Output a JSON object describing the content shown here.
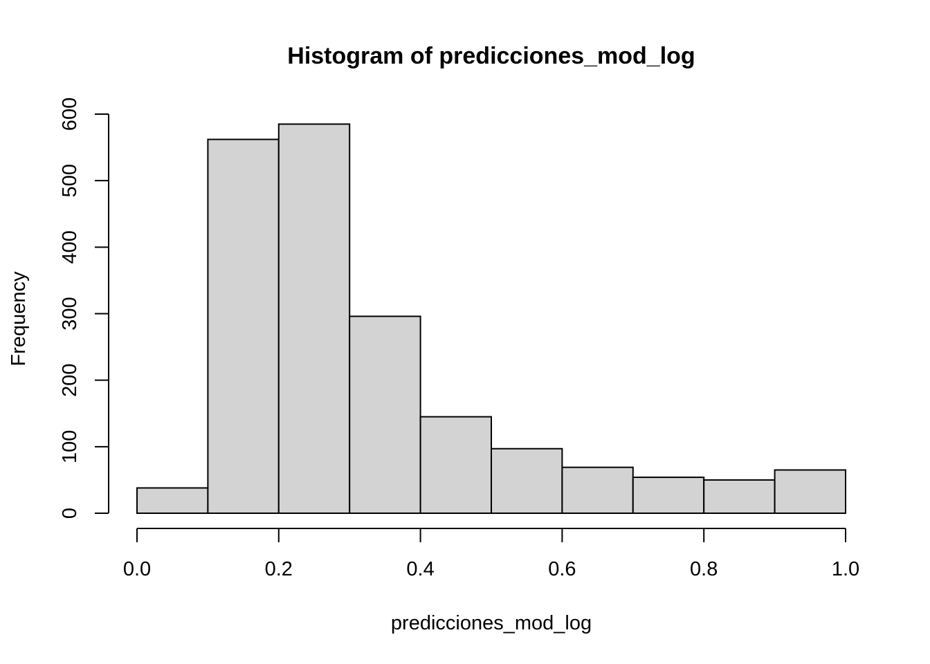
{
  "chart_data": {
    "type": "bar",
    "title": "Histogram of predicciones_mod_log",
    "xlabel": "predicciones_mod_log",
    "ylabel": "Frequency",
    "bins": [
      {
        "from": 0.0,
        "to": 0.1,
        "count": 38
      },
      {
        "from": 0.1,
        "to": 0.2,
        "count": 562
      },
      {
        "from": 0.2,
        "to": 0.3,
        "count": 585
      },
      {
        "from": 0.3,
        "to": 0.4,
        "count": 296
      },
      {
        "from": 0.4,
        "to": 0.5,
        "count": 145
      },
      {
        "from": 0.5,
        "to": 0.6,
        "count": 97
      },
      {
        "from": 0.6,
        "to": 0.7,
        "count": 69
      },
      {
        "from": 0.7,
        "to": 0.8,
        "count": 54
      },
      {
        "from": 0.8,
        "to": 0.9,
        "count": 50
      },
      {
        "from": 0.9,
        "to": 1.0,
        "count": 65
      }
    ],
    "xlim": [
      0.0,
      1.0
    ],
    "ylim": [
      0,
      600
    ],
    "x_ticks": [
      "0.0",
      "0.2",
      "0.4",
      "0.6",
      "0.8",
      "1.0"
    ],
    "x_tick_values": [
      0.0,
      0.2,
      0.4,
      0.6,
      0.8,
      1.0
    ],
    "y_ticks": [
      "0",
      "100",
      "200",
      "300",
      "400",
      "500",
      "600"
    ],
    "y_tick_values": [
      0,
      100,
      200,
      300,
      400,
      500,
      600
    ],
    "bar_fill": "#d3d3d3",
    "bar_stroke": "#000000",
    "grid": false,
    "legend": "none"
  }
}
